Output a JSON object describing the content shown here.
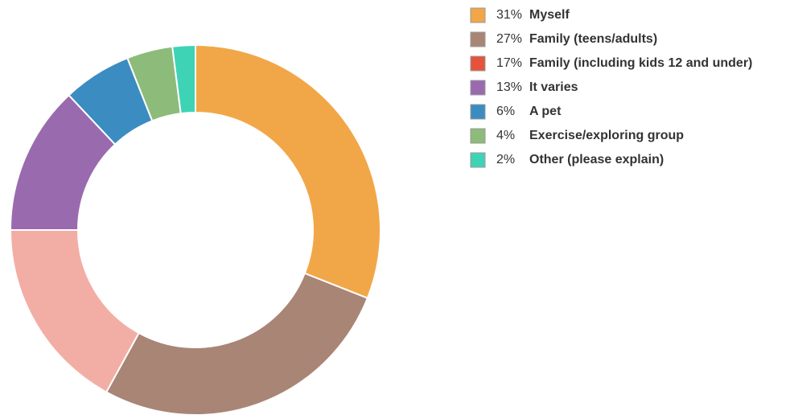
{
  "chart_data": {
    "type": "donut",
    "categories": [
      "Myself",
      "Family (teens/adults)",
      "Family (including kids 12 and under)",
      "It varies",
      "A pet",
      "Exercise/exploring group",
      "Other (please explain)"
    ],
    "values": [
      31,
      27,
      17,
      13,
      6,
      4,
      2
    ],
    "value_labels": [
      "31%",
      "27%",
      "17%",
      "13%",
      "6%",
      "4%",
      "2%"
    ],
    "colors": [
      "#f1a747",
      "#a98576",
      "#f2aea5",
      "#9a6aae",
      "#3a8cc1",
      "#8dbb7a",
      "#3fd3b6"
    ],
    "legend_colors": [
      "#f1a747",
      "#a98576",
      "#e5533c",
      "#9a6aae",
      "#3a8cc1",
      "#8dbb7a",
      "#3fd3b6"
    ],
    "legend": "top-right"
  }
}
